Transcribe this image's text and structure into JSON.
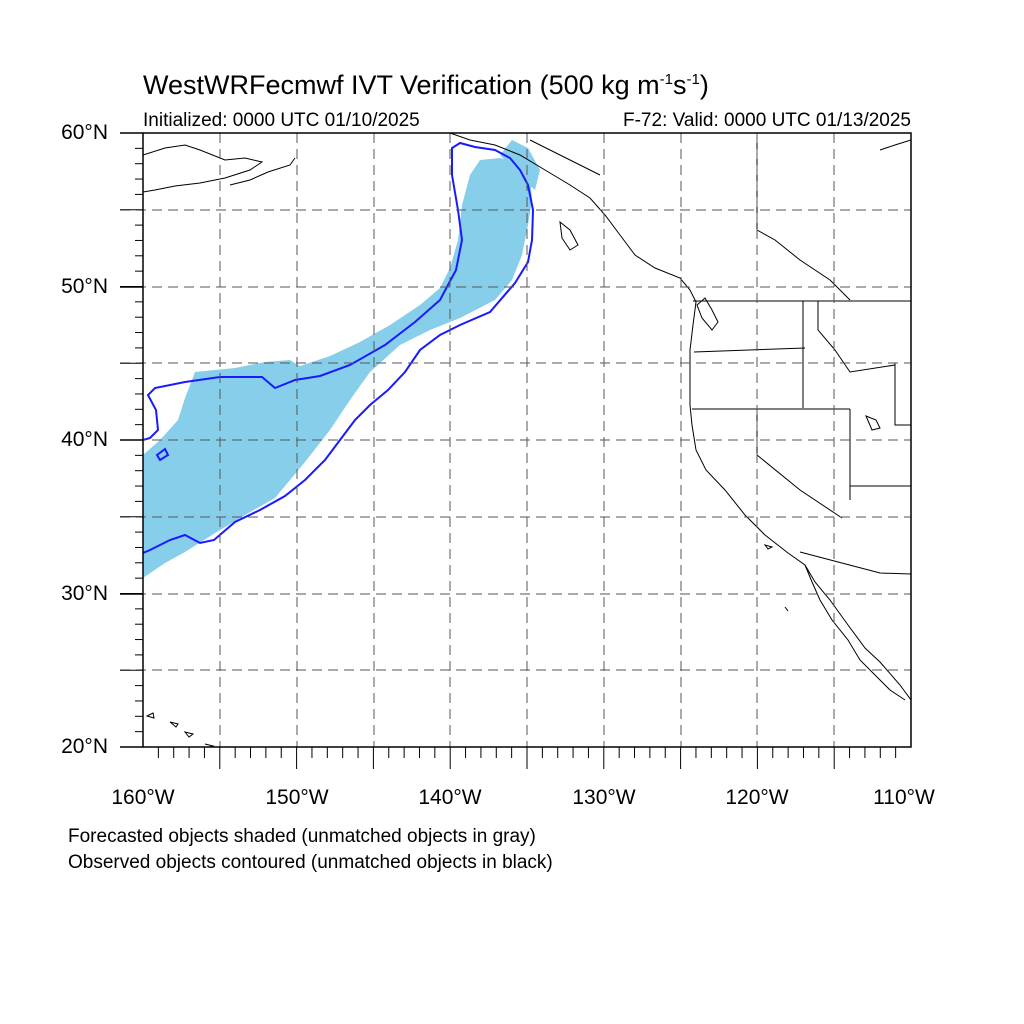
{
  "title": {
    "main": "WestWRFecmwf IVT Verification (500 kg m",
    "exp1": "-1",
    "mid": "s",
    "exp2": "-1",
    "end": ")"
  },
  "subtitle": {
    "left": "Initialized: 0000 UTC 01/10/2025",
    "right": "F-72: Valid: 0000 UTC 01/13/2025"
  },
  "axes": {
    "lat_labels": [
      "60°N",
      "50°N",
      "40°N",
      "30°N",
      "20°N"
    ],
    "lon_labels": [
      "160°W",
      "150°W",
      "140°W",
      "130°W",
      "120°W",
      "110°W"
    ],
    "lat_range": [
      20,
      60
    ],
    "lon_range": [
      -160,
      -110
    ],
    "grid": true,
    "grid_style": "dashed"
  },
  "legend": {
    "line1": "Forecasted objects shaded (unmatched objects in gray)",
    "line2": "Observed objects contoured (unmatched objects in black)"
  },
  "colors": {
    "forecast_shading": "#87ceeb",
    "observed_contour": "#1a1aff",
    "coastline": "#000000",
    "grid": "#555555"
  }
}
